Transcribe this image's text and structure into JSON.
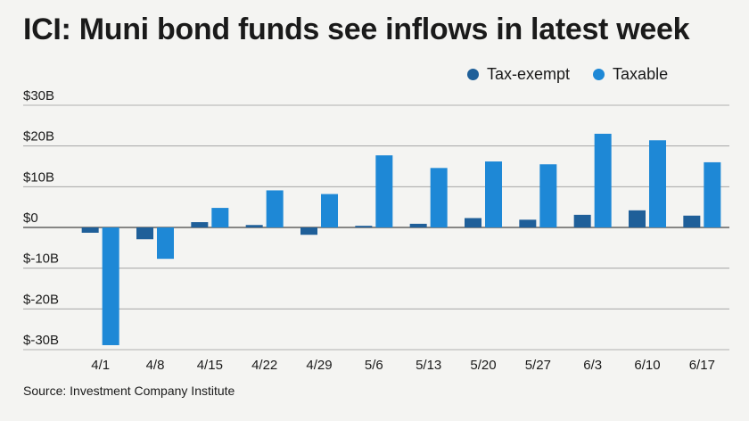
{
  "chart_data": {
    "type": "bar",
    "title": "ICI: Muni bond funds see inflows in latest week",
    "categories": [
      "4/1",
      "4/8",
      "4/15",
      "4/22",
      "4/29",
      "5/6",
      "5/13",
      "5/20",
      "5/27",
      "6/3",
      "6/10",
      "6/17"
    ],
    "series": [
      {
        "name": "Tax-exempt",
        "color": "#1f5f99",
        "values": [
          -1.3,
          -2.9,
          1.3,
          0.6,
          -1.8,
          0.4,
          0.9,
          2.3,
          1.9,
          3.1,
          4.2,
          2.9
        ]
      },
      {
        "name": "Taxable",
        "color": "#1e88d6",
        "values": [
          -28.9,
          -7.7,
          4.8,
          9.1,
          8.2,
          17.7,
          14.6,
          16.2,
          15.5,
          23.0,
          21.4,
          16.0
        ]
      }
    ],
    "yticks": [
      {
        "value": 30,
        "label": "$30B"
      },
      {
        "value": 20,
        "label": "$20B"
      },
      {
        "value": 10,
        "label": "$10B"
      },
      {
        "value": 0,
        "label": "$0"
      },
      {
        "value": -10,
        "label": "$-10B"
      },
      {
        "value": -20,
        "label": "$-20B"
      },
      {
        "value": -30,
        "label": "$-30B"
      }
    ],
    "ylim": [
      -30,
      30
    ],
    "grid": true,
    "legend_position": "top-right"
  },
  "source": "Source: Investment Company Institute"
}
